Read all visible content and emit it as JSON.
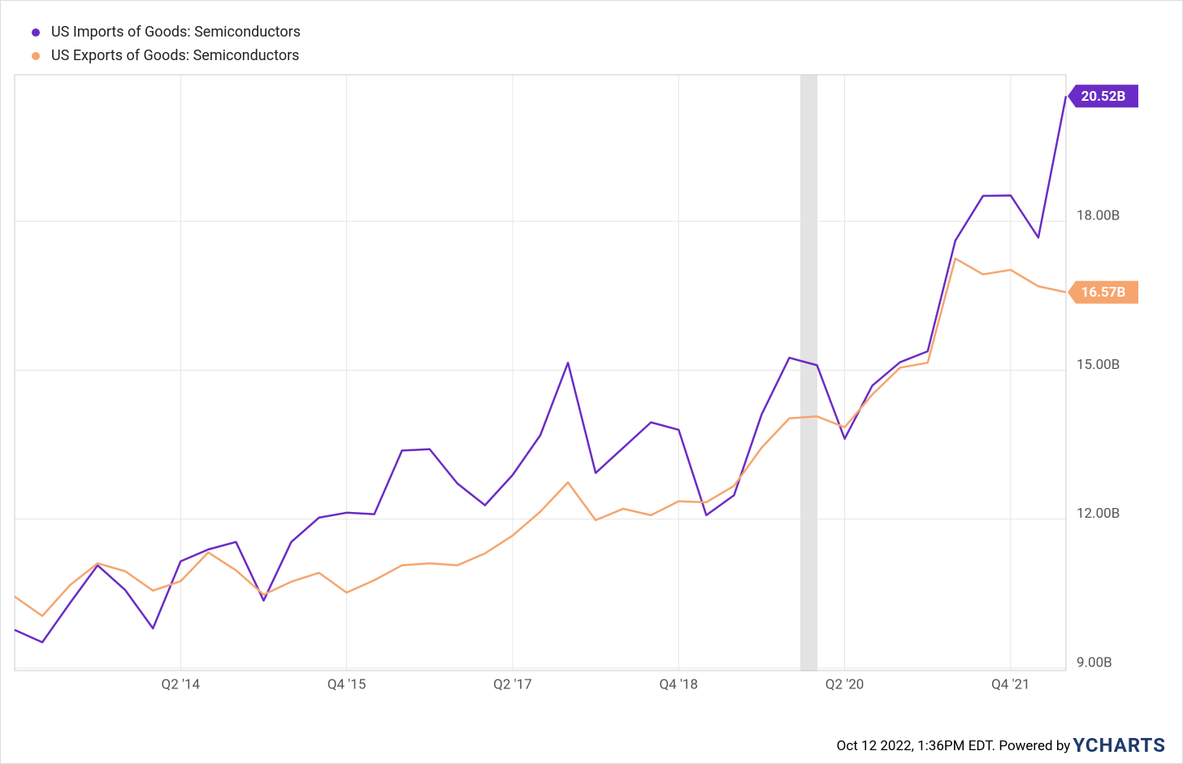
{
  "chart_data": {
    "type": "line",
    "categories": [
      null,
      null,
      null,
      null,
      null,
      null,
      "Q2 '14",
      null,
      null,
      null,
      null,
      null,
      "Q4 '15",
      null,
      null,
      null,
      null,
      null,
      "Q2 '17",
      null,
      null,
      null,
      null,
      null,
      "Q4 '18",
      null,
      null,
      null,
      null,
      null,
      "Q2 '20",
      null,
      null,
      null,
      null,
      null,
      "Q4 '21",
      null,
      null
    ],
    "series": [
      {
        "name": "US Imports of Goods: Semiconductors",
        "color": "#6a2cc5",
        "values": [
          9.77,
          9.52,
          10.31,
          11.07,
          10.57,
          9.8,
          11.15,
          11.39,
          11.54,
          10.36,
          11.54,
          12.03,
          12.13,
          12.1,
          13.38,
          13.41,
          12.72,
          12.28,
          12.89,
          13.69,
          15.15,
          12.93,
          13.44,
          13.95,
          13.8,
          12.08,
          12.48,
          14.11,
          15.25,
          15.1,
          13.62,
          14.69,
          15.16,
          15.38,
          17.61,
          18.51,
          18.52,
          17.67,
          20.52
        ],
        "value_labels": [
          null,
          null,
          null,
          null,
          null,
          null,
          null,
          null,
          null,
          null,
          null,
          null,
          null,
          null,
          null,
          null,
          null,
          null,
          null,
          null,
          null,
          null,
          null,
          null,
          null,
          null,
          null,
          null,
          null,
          null,
          null,
          null,
          null,
          null,
          null,
          null,
          null,
          null,
          "20.52B"
        ]
      },
      {
        "name": "US Exports of Goods: Semiconductors",
        "color": "#f6a56e",
        "values": [
          10.44,
          10.05,
          10.67,
          11.11,
          10.95,
          10.56,
          10.75,
          11.33,
          10.97,
          10.48,
          10.74,
          10.92,
          10.52,
          10.77,
          11.07,
          11.11,
          11.07,
          11.31,
          11.67,
          12.15,
          12.74,
          11.98,
          12.21,
          12.08,
          12.36,
          12.34,
          12.67,
          13.44,
          14.03,
          14.07,
          13.85,
          14.51,
          15.05,
          15.15,
          17.25,
          16.93,
          17.02,
          16.69,
          16.57
        ],
        "value_labels": [
          null,
          null,
          null,
          null,
          null,
          null,
          null,
          null,
          null,
          null,
          null,
          null,
          null,
          null,
          null,
          null,
          null,
          null,
          null,
          null,
          null,
          null,
          null,
          null,
          null,
          null,
          null,
          null,
          null,
          null,
          null,
          null,
          null,
          null,
          null,
          null,
          null,
          null,
          "16.57B"
        ]
      }
    ],
    "ylim": [
      9,
      20.95
    ],
    "yticks": [
      {
        "value": 9,
        "label": "9.00B"
      },
      {
        "value": 12,
        "label": "12.00B"
      },
      {
        "value": 15,
        "label": "15.00B"
      },
      {
        "value": 18,
        "label": "18.00B"
      }
    ],
    "grid": true,
    "legend": "top-left",
    "footer": "Oct 12 2022, 1:36PM EDT. Powered by",
    "brand": "YCHARTS"
  }
}
